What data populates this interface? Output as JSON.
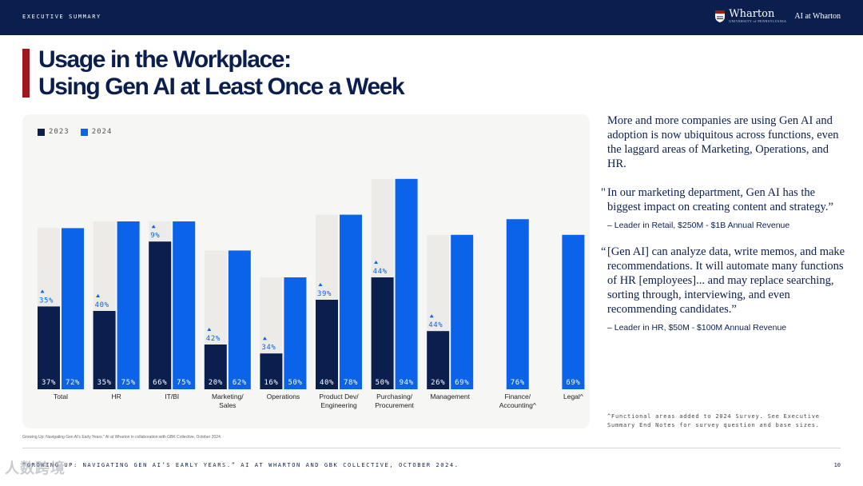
{
  "header": {
    "section": "EXECUTIVE SUMMARY",
    "logo": "Wharton",
    "logo_sub": "UNIVERSITY of PENNSYLVANIA",
    "tagline": "AI at Wharton"
  },
  "title": {
    "line1": "Usage in the Workplace:",
    "line2": "Using Gen AI at Least Once a Week"
  },
  "chart_data": {
    "type": "bar",
    "categories": [
      "Total",
      "HR",
      "IT/BI",
      "Marketing/\nSales",
      "Operations",
      "Product Dev/\nEngineering",
      "Purchasing/\nProcurement",
      "Management",
      "Finance/\nAccounting^",
      "Legal^"
    ],
    "series": [
      {
        "name": "2023",
        "values": [
          37,
          35,
          66,
          20,
          16,
          40,
          50,
          26,
          null,
          null
        ],
        "color": "#0b1f4f"
      },
      {
        "name": "2024",
        "values": [
          72,
          75,
          75,
          62,
          50,
          78,
          94,
          69,
          76,
          69
        ],
        "color": "#0a63e8"
      }
    ],
    "ylim": [
      0,
      100
    ],
    "value_labels": {
      "2023": [
        "37%",
        "35%",
        "66%",
        "20%",
        "16%",
        "40%",
        "50%",
        "26%",
        null,
        null
      ],
      "2024": [
        "72%",
        "75%",
        "75%",
        "62%",
        "50%",
        "78%",
        "94%",
        "69%",
        "76%",
        "69%"
      ]
    },
    "change_labels": [
      "35%",
      "40%",
      "9%",
      "42%",
      "34%",
      "39%",
      "44%",
      "44%",
      null,
      null
    ],
    "legend": [
      "2023",
      "2024"
    ],
    "legend_position": "top-left",
    "grid": false,
    "colors": {
      "ghost": "#ecebe7",
      "change": "#0a63e8",
      "label_light": "#ffffff"
    }
  },
  "source_note": "Growing Up: Navigating Gen AI's Early Years.\" AI at Wharton in collaboration with GBK Collective, October 2024",
  "body": "More and more companies are using Gen AI and adoption is now ubiquitous across functions, even the laggard areas of Marketing, Operations, and HR.",
  "quotes": [
    {
      "open": "\"",
      "text": "In our marketing department, Gen AI has the biggest impact on creating content and strategy.”",
      "attribution": "– Leader in Retail, $250M - $1B Annual Revenue"
    },
    {
      "open": "“",
      "text": "[Gen AI] can analyze data, write memos, and make recommendations. It will automate many functions of HR [employees]... and may replace searching, sorting through, interviewing, and even recommending candidates.”",
      "attribution": "– Leader in HR, $50M - $100M Annual Revenue"
    }
  ],
  "footnote": "^Functional areas added to 2024 Survey. See Executive Summary End Notes for survey question and base sizes.",
  "footer": "“GROWING UP: NAVIGATING GEN AI’S EARLY YEARS.” AI AT WHARTON AND GBK COLLECTIVE, OCTOBER 2024.",
  "page_number": "10",
  "watermark": "人数跨境"
}
